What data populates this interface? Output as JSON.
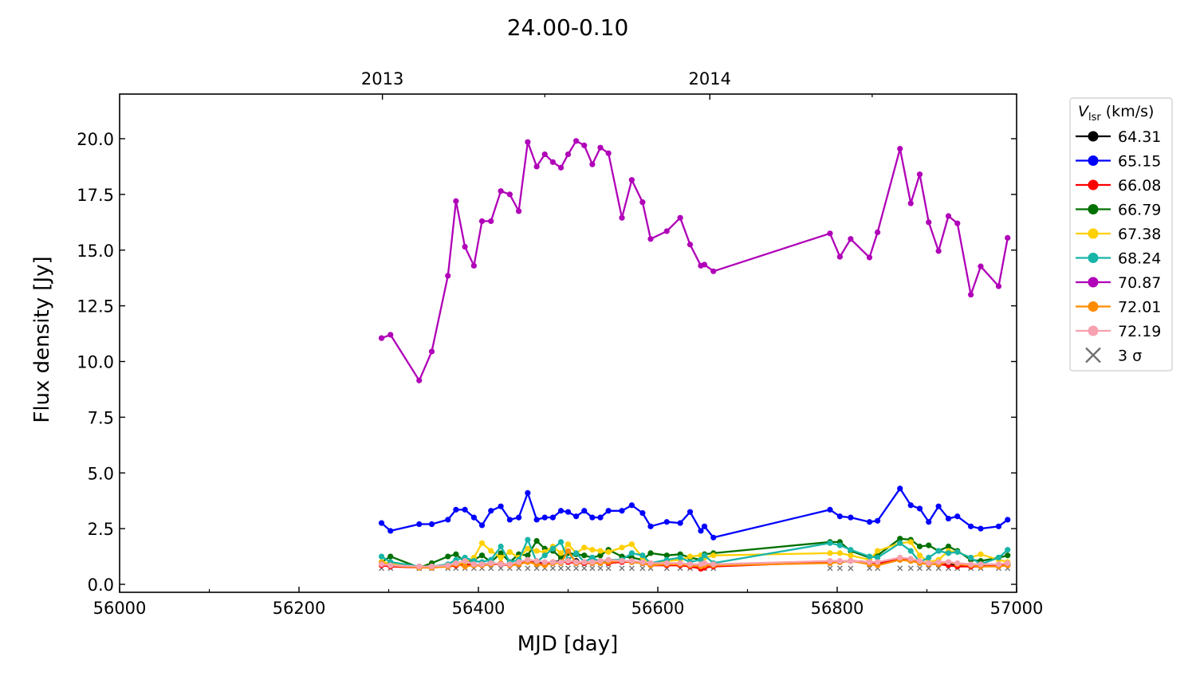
{
  "chart_data": {
    "type": "line",
    "title": "24.00-0.10",
    "xlabel": "MJD [day]",
    "ylabel": "Flux density [Jy]",
    "xlim": [
      56000,
      57000
    ],
    "ylim": [
      -0.35,
      22.0
    ],
    "xticks": [
      56000,
      56200,
      56400,
      56600,
      56800,
      57000
    ],
    "xtick_labels": [
      "56000",
      "56200",
      "56400",
      "56600",
      "56800",
      "57000"
    ],
    "xminor": [
      56100,
      56300,
      56500,
      56700,
      56900
    ],
    "yticks": [
      0,
      2.5,
      5,
      7.5,
      10,
      12.5,
      15,
      17.5,
      20
    ],
    "ytick_labels": [
      "0.0",
      "2.5",
      "5.0",
      "7.5",
      "10.0",
      "12.5",
      "15.0",
      "17.5",
      "20.0"
    ],
    "top_axis": {
      "ticks": [
        56293,
        56658
      ],
      "labels": [
        "2013",
        "2014"
      ],
      "minor": [
        56474,
        56839
      ]
    },
    "grid": false,
    "legend": {
      "title_main": "V",
      "title_sub": "lsr",
      "title_unit": " (km/s)",
      "placement": "outside-right",
      "sigma_label": "3 σ"
    },
    "x": [
      56292,
      56302,
      56334,
      56348,
      56366,
      56375,
      56385,
      56395,
      56404,
      56414,
      56425,
      56435,
      56445,
      56455,
      56465,
      56474,
      56483,
      56492,
      56500,
      56509,
      56518,
      56527,
      56536,
      56545,
      56560,
      56571,
      56583,
      56592,
      56610,
      56625,
      56636,
      56648,
      56652,
      56662,
      56792,
      56803,
      56815,
      56836,
      56845,
      56870,
      56882,
      56892,
      56902,
      56913,
      56924,
      56934,
      56949,
      56960,
      56980,
      56990
    ],
    "series": [
      {
        "name": "64.31",
        "color": "#000000",
        "values": [
          0.9,
          0.85,
          0.8,
          0.8,
          0.8,
          0.85,
          0.9,
          0.85,
          0.9,
          0.95,
          0.9,
          0.9,
          0.95,
          1.05,
          0.95,
          0.95,
          1.0,
          1.05,
          1.0,
          1.05,
          0.95,
          1.0,
          1.05,
          1.0,
          1.05,
          1.0,
          0.95,
          0.9,
          0.9,
          0.85,
          0.85,
          0.8,
          0.85,
          0.85,
          1.0,
          1.0,
          1.05,
          1.0,
          0.95,
          1.1,
          1.1,
          1.0,
          0.95,
          0.95,
          0.9,
          0.9,
          0.85,
          0.85,
          0.85,
          0.9
        ]
      },
      {
        "name": "65.15",
        "color": "#0000ff",
        "values": [
          2.75,
          2.4,
          2.7,
          2.7,
          2.9,
          3.35,
          3.35,
          3.0,
          2.65,
          3.3,
          3.5,
          2.9,
          3.0,
          4.1,
          2.9,
          3.0,
          3.0,
          3.3,
          3.25,
          3.05,
          3.3,
          3.0,
          3.0,
          3.3,
          3.3,
          3.55,
          3.2,
          2.6,
          2.8,
          2.75,
          3.25,
          2.4,
          2.6,
          2.1,
          3.35,
          3.05,
          3.0,
          2.8,
          2.85,
          4.3,
          3.55,
          3.4,
          2.8,
          3.5,
          2.95,
          3.05,
          2.6,
          2.5,
          2.6,
          2.9
        ]
      },
      {
        "name": "66.08",
        "color": "#ff0000",
        "values": [
          0.85,
          0.8,
          0.75,
          0.75,
          0.8,
          0.85,
          0.9,
          0.85,
          0.85,
          0.9,
          0.9,
          0.85,
          0.9,
          1.05,
          0.95,
          0.9,
          0.95,
          1.0,
          1.0,
          0.95,
          0.95,
          0.95,
          1.0,
          0.95,
          1.0,
          1.0,
          0.95,
          0.85,
          0.85,
          0.85,
          0.8,
          0.7,
          0.75,
          0.8,
          1.0,
          1.0,
          1.05,
          1.0,
          0.95,
          1.15,
          1.1,
          1.0,
          0.9,
          0.9,
          0.85,
          0.8,
          0.8,
          0.8,
          0.85,
          0.85
        ]
      },
      {
        "name": "66.79",
        "color": "#007000",
        "values": [
          1.0,
          1.25,
          0.75,
          0.95,
          1.25,
          1.35,
          1.0,
          1.1,
          1.3,
          1.0,
          1.4,
          1.0,
          1.35,
          1.3,
          1.95,
          1.6,
          1.5,
          1.2,
          1.4,
          1.35,
          1.3,
          1.2,
          1.3,
          1.55,
          1.25,
          1.2,
          1.1,
          1.4,
          1.3,
          1.35,
          1.2,
          1.1,
          1.35,
          1.4,
          1.9,
          1.9,
          1.5,
          1.2,
          1.3,
          2.05,
          2.0,
          1.7,
          1.75,
          1.5,
          1.7,
          1.5,
          1.1,
          1.05,
          1.2,
          1.3
        ]
      },
      {
        "name": "67.38",
        "color": "#ffd000",
        "values": [
          1.0,
          0.95,
          0.8,
          0.8,
          0.85,
          0.9,
          1.0,
          1.2,
          1.85,
          1.5,
          1.2,
          1.45,
          1.2,
          1.6,
          1.5,
          1.45,
          1.7,
          1.4,
          1.8,
          1.4,
          1.65,
          1.55,
          1.5,
          1.45,
          1.65,
          1.8,
          1.2,
          0.9,
          1.05,
          1.1,
          1.25,
          1.3,
          1.2,
          1.3,
          1.4,
          1.4,
          1.3,
          1.1,
          1.5,
          1.85,
          1.9,
          1.3,
          1.0,
          1.1,
          1.5,
          1.45,
          1.2,
          1.35,
          1.1,
          1.0
        ]
      },
      {
        "name": "68.24",
        "color": "#17b5a8",
        "values": [
          1.25,
          1.0,
          0.8,
          0.8,
          0.9,
          1.1,
          1.2,
          1.05,
          1.0,
          1.1,
          1.7,
          1.0,
          1.1,
          2.0,
          1.0,
          1.3,
          1.6,
          1.9,
          1.1,
          1.4,
          1.0,
          1.2,
          1.0,
          1.1,
          1.1,
          1.4,
          1.3,
          0.95,
          1.1,
          1.2,
          1.0,
          1.1,
          1.3,
          0.95,
          1.85,
          1.75,
          1.55,
          1.25,
          1.2,
          1.85,
          1.5,
          1.0,
          1.2,
          1.5,
          1.4,
          1.45,
          1.2,
          0.9,
          1.2,
          1.55
        ]
      },
      {
        "name": "70.87",
        "color": "#b000b8",
        "values": [
          11.05,
          11.2,
          9.15,
          10.45,
          13.85,
          17.2,
          15.15,
          14.3,
          16.3,
          16.3,
          17.65,
          17.5,
          16.75,
          19.85,
          18.75,
          19.3,
          18.95,
          18.7,
          19.3,
          19.9,
          19.7,
          18.85,
          19.6,
          19.35,
          16.45,
          18.15,
          17.15,
          15.5,
          15.85,
          16.45,
          15.25,
          14.3,
          14.35,
          14.05,
          15.75,
          14.7,
          15.5,
          14.67,
          15.8,
          19.55,
          17.1,
          18.4,
          16.25,
          14.96,
          16.53,
          16.2,
          13.0,
          14.27,
          13.38,
          15.55
        ]
      },
      {
        "name": "72.01",
        "color": "#ff8c00",
        "values": [
          0.95,
          0.85,
          0.75,
          0.75,
          0.8,
          0.9,
          0.8,
          0.85,
          0.85,
          0.9,
          0.95,
          0.85,
          0.9,
          1.0,
          0.9,
          0.85,
          0.95,
          0.95,
          1.5,
          0.95,
          1.0,
          0.95,
          0.95,
          1.0,
          1.05,
          1.0,
          0.95,
          0.85,
          0.9,
          0.9,
          0.85,
          0.8,
          0.85,
          0.85,
          0.95,
          1.0,
          1.05,
          0.9,
          0.85,
          1.1,
          1.05,
          0.95,
          0.9,
          0.9,
          1.0,
          0.9,
          0.85,
          0.8,
          0.8,
          0.85
        ]
      },
      {
        "name": "72.19",
        "color": "#f7a1b0",
        "values": [
          0.9,
          0.85,
          0.8,
          0.8,
          0.85,
          0.95,
          1.05,
          0.9,
          0.9,
          0.95,
          0.9,
          0.9,
          1.0,
          1.1,
          1.05,
          1.0,
          1.0,
          1.0,
          1.05,
          1.0,
          1.0,
          1.0,
          1.05,
          1.1,
          1.05,
          1.05,
          1.0,
          0.95,
          0.95,
          0.95,
          0.9,
          0.9,
          0.95,
          0.9,
          1.05,
          1.05,
          1.05,
          1.0,
          1.0,
          1.2,
          1.15,
          1.05,
          0.95,
          1.0,
          1.0,
          0.95,
          0.9,
          0.9,
          0.9,
          0.95
        ]
      }
    ],
    "sigma": {
      "name": "3 σ",
      "color": "#707070",
      "value": 0.72
    }
  }
}
